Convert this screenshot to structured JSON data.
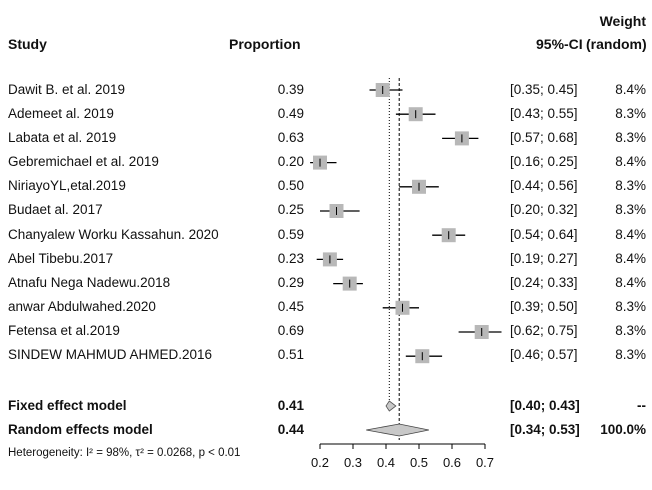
{
  "headers": {
    "study": "Study",
    "proportion": "Proportion",
    "ci": "95%-CI",
    "weight_line1": "Weight",
    "weight_line2": "(random)"
  },
  "studies": [
    {
      "name": "Dawit B. et al. 2019",
      "prop_text": "0.39",
      "ci_text": "[0.35; 0.45]",
      "weight_text": "8.4%"
    },
    {
      "name": "Ademeet al. 2019",
      "prop_text": "0.49",
      "ci_text": "[0.43; 0.55]",
      "weight_text": "8.3%"
    },
    {
      "name": "Labata et al. 2019",
      "prop_text": "0.63",
      "ci_text": "[0.57; 0.68]",
      "weight_text": "8.3%"
    },
    {
      "name": "Gebremichael et al. 2019",
      "prop_text": "0.20",
      "ci_text": "[0.16; 0.25]",
      "weight_text": "8.4%"
    },
    {
      "name": "NiriayoYL,etal.2019",
      "prop_text": "0.50",
      "ci_text": "[0.44; 0.56]",
      "weight_text": "8.3%"
    },
    {
      "name": "Budaet al. 2017",
      "prop_text": "0.25",
      "ci_text": "[0.20; 0.32]",
      "weight_text": "8.3%"
    },
    {
      "name": "Chanyalew Worku Kassahun. 2020",
      "prop_text": "0.59",
      "ci_text": "[0.54; 0.64]",
      "weight_text": "8.4%"
    },
    {
      "name": "Abel Tibebu.2017",
      "prop_text": "0.23",
      "ci_text": "[0.19; 0.27]",
      "weight_text": "8.4%"
    },
    {
      "name": "Atnafu Nega Nadewu.2018",
      "prop_text": "0.29",
      "ci_text": "[0.24; 0.33]",
      "weight_text": "8.4%"
    },
    {
      "name": "anwar Abdulwahed.2020",
      "prop_text": "0.45",
      "ci_text": "[0.39; 0.50]",
      "weight_text": "8.3%"
    },
    {
      "name": "Fetensa et al.2019",
      "prop_text": "0.69",
      "ci_text": "[0.62; 0.75]",
      "weight_text": "8.3%"
    },
    {
      "name": "SINDEW MAHMUD AHMED.2016",
      "prop_text": "0.51",
      "ci_text": "[0.46; 0.57]",
      "weight_text": "8.3%"
    }
  ],
  "pooled": [
    {
      "name": "Fixed effect model",
      "prop_text": "0.41",
      "ci_text": "[0.40; 0.43]",
      "weight_text": "--"
    },
    {
      "name": "Random effects model",
      "prop_text": "0.44",
      "ci_text": "[0.34; 0.53]",
      "weight_text": "100.0%"
    }
  ],
  "heterogeneity": "Heterogeneity: I² = 98%, τ² = 0.0268, p < 0.01",
  "chart_data": {
    "type": "forest",
    "x_ticks": [
      0.2,
      0.3,
      0.4,
      0.5,
      0.6,
      0.7
    ],
    "x_tick_labels": [
      "0.2",
      "0.3",
      "0.4",
      "0.5",
      "0.6",
      "0.7"
    ],
    "xlim": [
      0.2,
      0.7
    ],
    "studies": [
      {
        "est": 0.39,
        "lo": 0.35,
        "hi": 0.45,
        "weight": 8.4
      },
      {
        "est": 0.49,
        "lo": 0.43,
        "hi": 0.55,
        "weight": 8.3
      },
      {
        "est": 0.63,
        "lo": 0.57,
        "hi": 0.68,
        "weight": 8.3
      },
      {
        "est": 0.2,
        "lo": 0.16,
        "hi": 0.25,
        "weight": 8.4
      },
      {
        "est": 0.5,
        "lo": 0.44,
        "hi": 0.56,
        "weight": 8.3
      },
      {
        "est": 0.25,
        "lo": 0.2,
        "hi": 0.32,
        "weight": 8.3
      },
      {
        "est": 0.59,
        "lo": 0.54,
        "hi": 0.64,
        "weight": 8.4
      },
      {
        "est": 0.23,
        "lo": 0.19,
        "hi": 0.27,
        "weight": 8.4
      },
      {
        "est": 0.29,
        "lo": 0.24,
        "hi": 0.33,
        "weight": 8.4
      },
      {
        "est": 0.45,
        "lo": 0.39,
        "hi": 0.5,
        "weight": 8.3
      },
      {
        "est": 0.69,
        "lo": 0.62,
        "hi": 0.75,
        "weight": 8.3
      },
      {
        "est": 0.51,
        "lo": 0.46,
        "hi": 0.57,
        "weight": 8.3
      }
    ],
    "fixed": {
      "est": 0.41,
      "lo": 0.4,
      "hi": 0.43
    },
    "random": {
      "est": 0.44,
      "lo": 0.34,
      "hi": 0.53
    },
    "colors": {
      "square": "#b8b8b8",
      "diamond": "#c8c8c8",
      "line": "#000000"
    }
  }
}
